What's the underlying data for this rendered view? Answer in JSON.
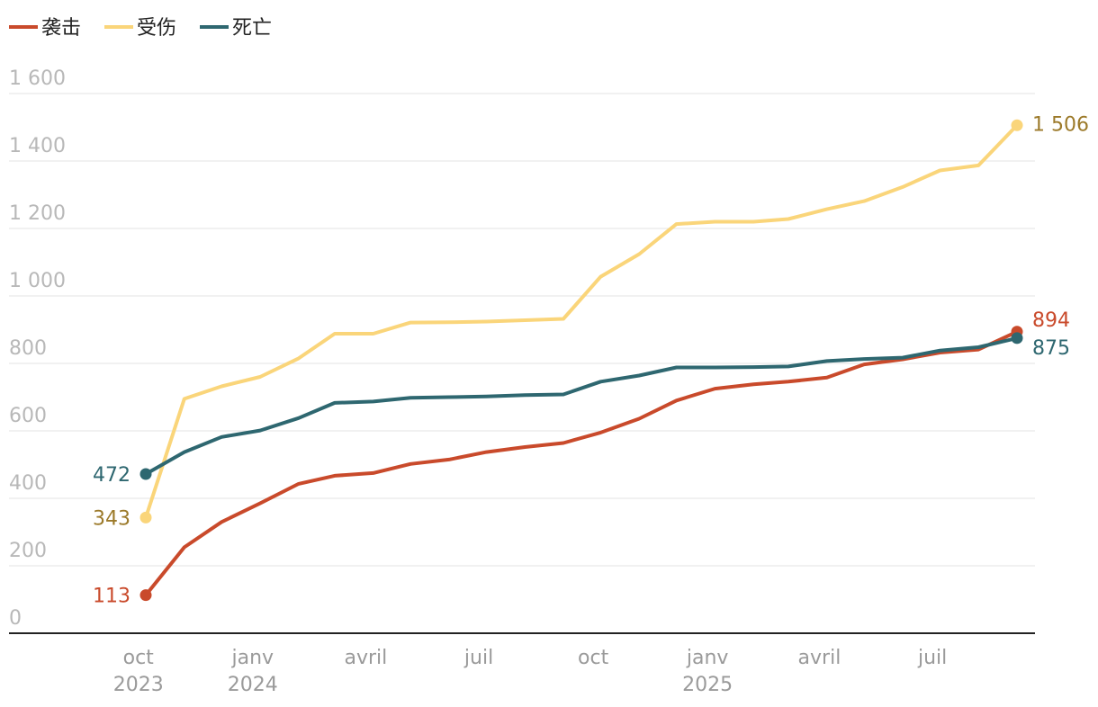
{
  "chart_data": {
    "type": "line",
    "legend_position": "top-left",
    "grid": true,
    "ylim": [
      0,
      1600
    ],
    "y_ticks": [
      {
        "value": 0,
        "label": "0"
      },
      {
        "value": 200,
        "label": "200"
      },
      {
        "value": 400,
        "label": "400"
      },
      {
        "value": 600,
        "label": "600"
      },
      {
        "value": 800,
        "label": "800"
      },
      {
        "value": 1000,
        "label": "1 000"
      },
      {
        "value": 1200,
        "label": "1 200"
      },
      {
        "value": 1400,
        "label": "1 400"
      },
      {
        "value": 1600,
        "label": "1 600"
      }
    ],
    "x_ticks": [
      {
        "date": "2023-10",
        "label": "oct",
        "year": "2023"
      },
      {
        "date": "2024-01",
        "label": "janv",
        "year": "2024"
      },
      {
        "date": "2024-04",
        "label": "avril",
        "year": ""
      },
      {
        "date": "2024-07",
        "label": "juil",
        "year": ""
      },
      {
        "date": "2024-10",
        "label": "oct",
        "year": ""
      },
      {
        "date": "2025-01",
        "label": "janv",
        "year": "2025"
      },
      {
        "date": "2025-04",
        "label": "avril",
        "year": ""
      },
      {
        "date": "2025-07",
        "label": "juil",
        "year": ""
      }
    ],
    "x": [
      "2023-10-07",
      "2023-11-07",
      "2023-12-07",
      "2024-01-07",
      "2024-02-07",
      "2024-03-07",
      "2024-04-07",
      "2024-05-07",
      "2024-06-07",
      "2024-07-07",
      "2024-08-07",
      "2024-09-07",
      "2024-10-07",
      "2024-11-07",
      "2024-12-07",
      "2025-01-07",
      "2025-02-07",
      "2025-03-07",
      "2025-04-07",
      "2025-05-07",
      "2025-06-07",
      "2025-07-07",
      "2025-08-07",
      "2025-09-07"
    ],
    "series": [
      {
        "name": "袭击",
        "color": "#c94a2b",
        "label_color": "#c94a2b",
        "values": [
          113,
          255,
          330,
          385,
          443,
          467,
          475,
          502,
          515,
          537,
          552,
          564,
          595,
          636,
          690,
          725,
          738,
          746,
          758,
          797,
          812,
          832,
          841,
          894
        ],
        "start_label": "113",
        "end_label": "894"
      },
      {
        "name": "受伤",
        "color": "#fad57a",
        "label_color": "#9c7a2a",
        "values": [
          343,
          695,
          732,
          760,
          815,
          888,
          888,
          921,
          922,
          924,
          928,
          932,
          1057,
          1124,
          1213,
          1220,
          1220,
          1228,
          1257,
          1281,
          1323,
          1372,
          1387,
          1506
        ],
        "start_label": "343",
        "end_label": "1 506"
      },
      {
        "name": "死亡",
        "color": "#2e6770",
        "label_color": "#2e6770",
        "values": [
          472,
          537,
          582,
          601,
          638,
          683,
          687,
          698,
          700,
          702,
          706,
          708,
          746,
          764,
          788,
          788,
          789,
          791,
          807,
          813,
          817,
          838,
          848,
          875
        ],
        "start_label": "472",
        "end_label": "875"
      }
    ]
  }
}
